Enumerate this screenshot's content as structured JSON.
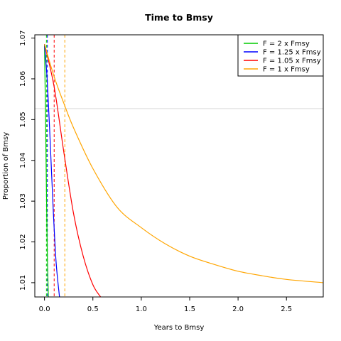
{
  "chart_data": {
    "type": "line",
    "title": "Time to Bmsy",
    "xlabel": "Years to Bmsy",
    "ylabel": "Proportion of Bmsy",
    "xlim": [
      -0.1,
      2.88
    ],
    "ylim": [
      1.0065,
      1.0708
    ],
    "x_ticks": [
      0.0,
      0.5,
      1.0,
      1.5,
      2.0,
      2.5
    ],
    "x_tick_labels": [
      "0.0",
      "0.5",
      "1.0",
      "1.5",
      "2.0",
      "2.5"
    ],
    "y_ticks": [
      1.01,
      1.02,
      1.03,
      1.04,
      1.05,
      1.06,
      1.07
    ],
    "y_tick_labels": [
      "1.01",
      "1.02",
      "1.03",
      "1.04",
      "1.05",
      "1.06",
      "1.07"
    ],
    "reference_line": {
      "y": 1.0527,
      "color": "#d9d9d9"
    },
    "legend_position": "top-right",
    "colors": {
      "F = 2 x Fmsy": "#00cc00",
      "F = 1.25 x Fmsy": "#0000ff",
      "F = 1.05 x Fmsy": "#ff0000",
      "F = 1 x Fmsy": "#ffa500"
    },
    "series": [
      {
        "name": "F = 2 x Fmsy",
        "color": "#00cc00",
        "vline_x": 0.02,
        "x": [
          0.0,
          0.01,
          0.02,
          0.03,
          0.04
        ],
        "y": [
          1.0685,
          1.052,
          1.033,
          1.016,
          1.0065
        ]
      },
      {
        "name": "F = 1.25 x Fmsy",
        "color": "#0000ff",
        "vline_x": 0.03,
        "x": [
          0.0,
          0.03,
          0.06,
          0.09,
          0.12,
          0.155
        ],
        "y": [
          1.0685,
          1.059,
          1.044,
          1.028,
          1.015,
          1.0065
        ]
      },
      {
        "name": "F = 1.05 x Fmsy",
        "color": "#ff0000",
        "vline_x": 0.1,
        "x": [
          0.0,
          0.1,
          0.2,
          0.3,
          0.4,
          0.5,
          0.58
        ],
        "y": [
          1.0685,
          1.058,
          1.042,
          1.027,
          1.0165,
          1.0095,
          1.0065
        ]
      },
      {
        "name": "F = 1 x Fmsy",
        "color": "#ffa500",
        "vline_x": 0.21,
        "x": [
          0.0,
          0.1,
          0.2,
          0.3,
          0.5,
          0.75,
          1.0,
          1.25,
          1.5,
          1.75,
          2.0,
          2.25,
          2.5,
          2.88
        ],
        "y": [
          1.0685,
          1.0605,
          1.054,
          1.048,
          1.038,
          1.0285,
          1.0235,
          1.0195,
          1.0165,
          1.0145,
          1.0128,
          1.0117,
          1.0108,
          1.01
        ]
      }
    ]
  }
}
